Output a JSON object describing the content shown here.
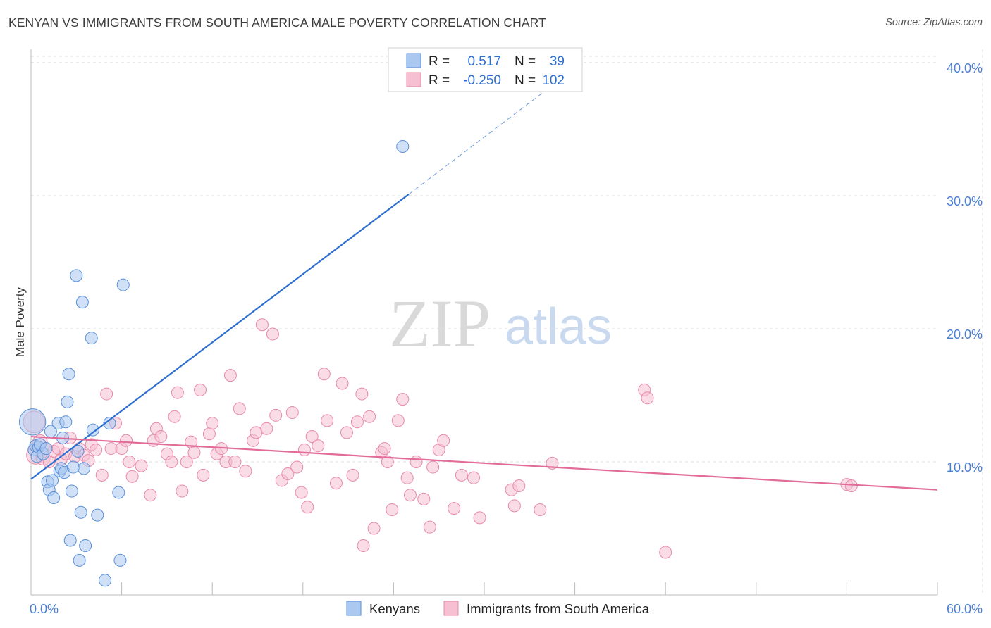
{
  "title": "KENYAN VS IMMIGRANTS FROM SOUTH AMERICA MALE POVERTY CORRELATION CHART",
  "source": "Source: ZipAtlas.com",
  "watermark": {
    "zip": "ZIP",
    "atlas": "atlas"
  },
  "colors": {
    "kenyans_fill": "#aac8f0",
    "kenyans_stroke": "#5a8fd8",
    "kenyans_line": "#2d6fcf",
    "sa_fill": "#f6bfd2",
    "sa_stroke": "#e88aab",
    "sa_line": "#e26c97",
    "grid": "#dddddd",
    "tick_text": "#4a7fd4"
  },
  "legend": {
    "rows": [
      {
        "r_label": "R =",
        "r_value": "0.517",
        "n_label": "N =",
        "n_value": "39"
      },
      {
        "r_label": "R =",
        "r_value": "-0.250",
        "n_label": "N =",
        "n_value": "102"
      }
    ]
  },
  "chart_data": {
    "type": "scatter",
    "title": "KENYAN VS IMMIGRANTS FROM SOUTH AMERICA MALE POVERTY CORRELATION CHART",
    "xlabel": "",
    "ylabel": "Male Poverty",
    "xlim": [
      0,
      60
    ],
    "ylim": [
      0,
      41
    ],
    "x_tick_labels": [
      "0.0%",
      "60.0%"
    ],
    "y_ticks": [
      10,
      20,
      30,
      40
    ],
    "y_tick_labels": [
      "10.0%",
      "20.0%",
      "30.0%",
      "40.0%"
    ],
    "grid": true,
    "legend_position": "top-center",
    "series": [
      {
        "name": "Kenyans",
        "r": 0.517,
        "n": 39,
        "trend": {
          "x0": 0,
          "y0": 8.7,
          "x1": 25,
          "y1": 30.1,
          "dash_x1": 36.5,
          "dash_y1": 40.0
        },
        "points": [
          [
            0.1,
            13.0,
            2.2
          ],
          [
            0.2,
            10.9,
            1.0
          ],
          [
            0.3,
            11.2,
            1.0
          ],
          [
            0.4,
            10.4,
            1.0
          ],
          [
            0.5,
            11.1,
            1.0
          ],
          [
            0.6,
            11.3,
            1.0
          ],
          [
            0.8,
            10.6,
            1.0
          ],
          [
            1.0,
            11.0,
            1.0
          ],
          [
            1.1,
            8.5,
            1.0
          ],
          [
            1.2,
            7.9,
            1.0
          ],
          [
            1.3,
            12.3,
            1.0
          ],
          [
            1.4,
            8.6,
            1.0
          ],
          [
            1.5,
            7.3,
            1.0
          ],
          [
            1.8,
            12.9,
            1.0
          ],
          [
            1.9,
            9.3,
            1.0
          ],
          [
            2.0,
            9.5,
            1.0
          ],
          [
            2.1,
            11.8,
            1.0
          ],
          [
            2.2,
            9.2,
            1.0
          ],
          [
            2.3,
            13.0,
            1.0
          ],
          [
            2.4,
            14.5,
            1.0
          ],
          [
            2.5,
            16.6,
            1.0
          ],
          [
            2.6,
            4.1,
            1.0
          ],
          [
            2.7,
            7.8,
            1.0
          ],
          [
            2.8,
            9.6,
            1.0
          ],
          [
            3.0,
            24.0,
            1.0
          ],
          [
            3.1,
            10.8,
            1.0
          ],
          [
            3.2,
            2.6,
            1.0
          ],
          [
            3.3,
            6.2,
            1.0
          ],
          [
            3.4,
            22.0,
            1.0
          ],
          [
            3.5,
            9.5,
            1.0
          ],
          [
            3.6,
            3.7,
            1.0
          ],
          [
            4.0,
            19.3,
            1.0
          ],
          [
            4.1,
            12.4,
            1.0
          ],
          [
            4.4,
            6.0,
            1.0
          ],
          [
            4.9,
            1.1,
            1.0
          ],
          [
            5.2,
            12.9,
            1.0
          ],
          [
            5.8,
            7.7,
            1.0
          ],
          [
            5.9,
            2.6,
            1.0
          ],
          [
            6.1,
            23.3,
            1.0
          ],
          [
            24.6,
            33.7,
            1.0
          ]
        ]
      },
      {
        "name": "Immigrants from South America",
        "r": -0.25,
        "n": 102,
        "trend": {
          "x0": 0,
          "y0": 11.9,
          "x1": 60,
          "y1": 7.9
        },
        "points": [
          [
            0.2,
            13.0,
            1.8
          ],
          [
            0.3,
            10.5,
            1.5
          ],
          [
            0.6,
            11.5,
            1.2
          ],
          [
            0.8,
            10.3,
            1.2
          ],
          [
            1.0,
            11.0,
            1.0
          ],
          [
            1.2,
            10.0,
            1.0
          ],
          [
            1.5,
            10.8,
            1.0
          ],
          [
            1.8,
            11.0,
            1.0
          ],
          [
            2.0,
            10.2,
            1.0
          ],
          [
            2.3,
            10.6,
            1.0
          ],
          [
            2.6,
            11.8,
            1.0
          ],
          [
            2.9,
            10.4,
            1.0
          ],
          [
            3.2,
            11.0,
            1.0
          ],
          [
            3.5,
            10.5,
            1.0
          ],
          [
            3.8,
            10.1,
            1.0
          ],
          [
            4.0,
            11.3,
            1.0
          ],
          [
            4.3,
            10.9,
            1.0
          ],
          [
            4.7,
            9.0,
            1.0
          ],
          [
            5.0,
            15.1,
            1.0
          ],
          [
            5.3,
            11.0,
            1.0
          ],
          [
            5.6,
            12.9,
            1.0
          ],
          [
            6.0,
            11.0,
            1.0
          ],
          [
            6.3,
            11.6,
            1.0
          ],
          [
            6.5,
            10.0,
            1.0
          ],
          [
            6.7,
            8.9,
            1.0
          ],
          [
            7.3,
            9.7,
            1.0
          ],
          [
            7.9,
            7.5,
            1.0
          ],
          [
            8.1,
            11.6,
            1.0
          ],
          [
            8.3,
            12.5,
            1.0
          ],
          [
            8.6,
            11.9,
            1.0
          ],
          [
            9.0,
            10.6,
            1.0
          ],
          [
            9.3,
            10.0,
            1.0
          ],
          [
            9.5,
            13.4,
            1.0
          ],
          [
            9.7,
            15.2,
            1.0
          ],
          [
            10.0,
            7.8,
            1.0
          ],
          [
            10.3,
            10.0,
            1.0
          ],
          [
            10.6,
            11.5,
            1.0
          ],
          [
            10.8,
            10.7,
            1.0
          ],
          [
            11.2,
            15.4,
            1.0
          ],
          [
            11.4,
            9.0,
            1.0
          ],
          [
            11.8,
            12.1,
            1.0
          ],
          [
            12.0,
            12.9,
            1.0
          ],
          [
            12.3,
            10.6,
            1.0
          ],
          [
            12.6,
            11.0,
            1.0
          ],
          [
            12.9,
            10.0,
            1.0
          ],
          [
            13.2,
            16.5,
            1.0
          ],
          [
            13.5,
            10.0,
            1.0
          ],
          [
            13.8,
            14.0,
            1.0
          ],
          [
            14.2,
            9.3,
            1.0
          ],
          [
            14.7,
            11.6,
            1.0
          ],
          [
            14.9,
            12.2,
            1.0
          ],
          [
            15.3,
            20.3,
            1.0
          ],
          [
            15.6,
            12.5,
            1.0
          ],
          [
            16.0,
            19.6,
            1.0
          ],
          [
            16.2,
            13.5,
            1.0
          ],
          [
            16.6,
            8.6,
            1.0
          ],
          [
            17.0,
            9.1,
            1.0
          ],
          [
            17.3,
            13.7,
            1.0
          ],
          [
            17.6,
            9.6,
            1.0
          ],
          [
            17.9,
            7.7,
            1.0
          ],
          [
            18.1,
            10.9,
            1.0
          ],
          [
            18.3,
            6.6,
            1.0
          ],
          [
            18.6,
            11.9,
            1.0
          ],
          [
            19.0,
            11.2,
            1.0
          ],
          [
            19.4,
            16.6,
            1.0
          ],
          [
            19.6,
            13.1,
            1.0
          ],
          [
            20.2,
            8.4,
            1.0
          ],
          [
            20.6,
            15.9,
            1.0
          ],
          [
            20.9,
            12.2,
            1.0
          ],
          [
            21.3,
            9.0,
            1.0
          ],
          [
            21.6,
            13.0,
            1.0
          ],
          [
            21.9,
            15.1,
            1.0
          ],
          [
            22.0,
            3.7,
            1.0
          ],
          [
            22.4,
            13.4,
            1.0
          ],
          [
            22.7,
            5.0,
            1.0
          ],
          [
            23.2,
            10.7,
            1.0
          ],
          [
            23.4,
            11.0,
            1.0
          ],
          [
            23.6,
            10.0,
            1.0
          ],
          [
            23.9,
            6.4,
            1.0
          ],
          [
            24.3,
            13.1,
            1.0
          ],
          [
            24.6,
            14.7,
            1.0
          ],
          [
            24.9,
            8.8,
            1.0
          ],
          [
            25.1,
            7.5,
            1.0
          ],
          [
            25.5,
            10.0,
            1.0
          ],
          [
            26.0,
            7.2,
            1.0
          ],
          [
            26.4,
            5.1,
            1.0
          ],
          [
            26.6,
            9.6,
            1.0
          ],
          [
            27.0,
            10.9,
            1.0
          ],
          [
            27.3,
            11.6,
            1.0
          ],
          [
            28.0,
            6.5,
            1.0
          ],
          [
            28.5,
            9.0,
            1.0
          ],
          [
            29.3,
            8.8,
            1.0
          ],
          [
            29.7,
            5.8,
            1.0
          ],
          [
            31.8,
            7.9,
            1.0
          ],
          [
            32.0,
            6.7,
            1.0
          ],
          [
            32.3,
            8.2,
            1.0
          ],
          [
            33.7,
            6.4,
            1.0
          ],
          [
            34.5,
            9.9,
            1.0
          ],
          [
            40.6,
            15.4,
            1.0
          ],
          [
            40.8,
            14.8,
            1.0
          ],
          [
            42.0,
            3.2,
            1.0
          ],
          [
            54.0,
            8.3,
            1.0
          ],
          [
            54.3,
            8.2,
            1.0
          ]
        ]
      }
    ]
  }
}
